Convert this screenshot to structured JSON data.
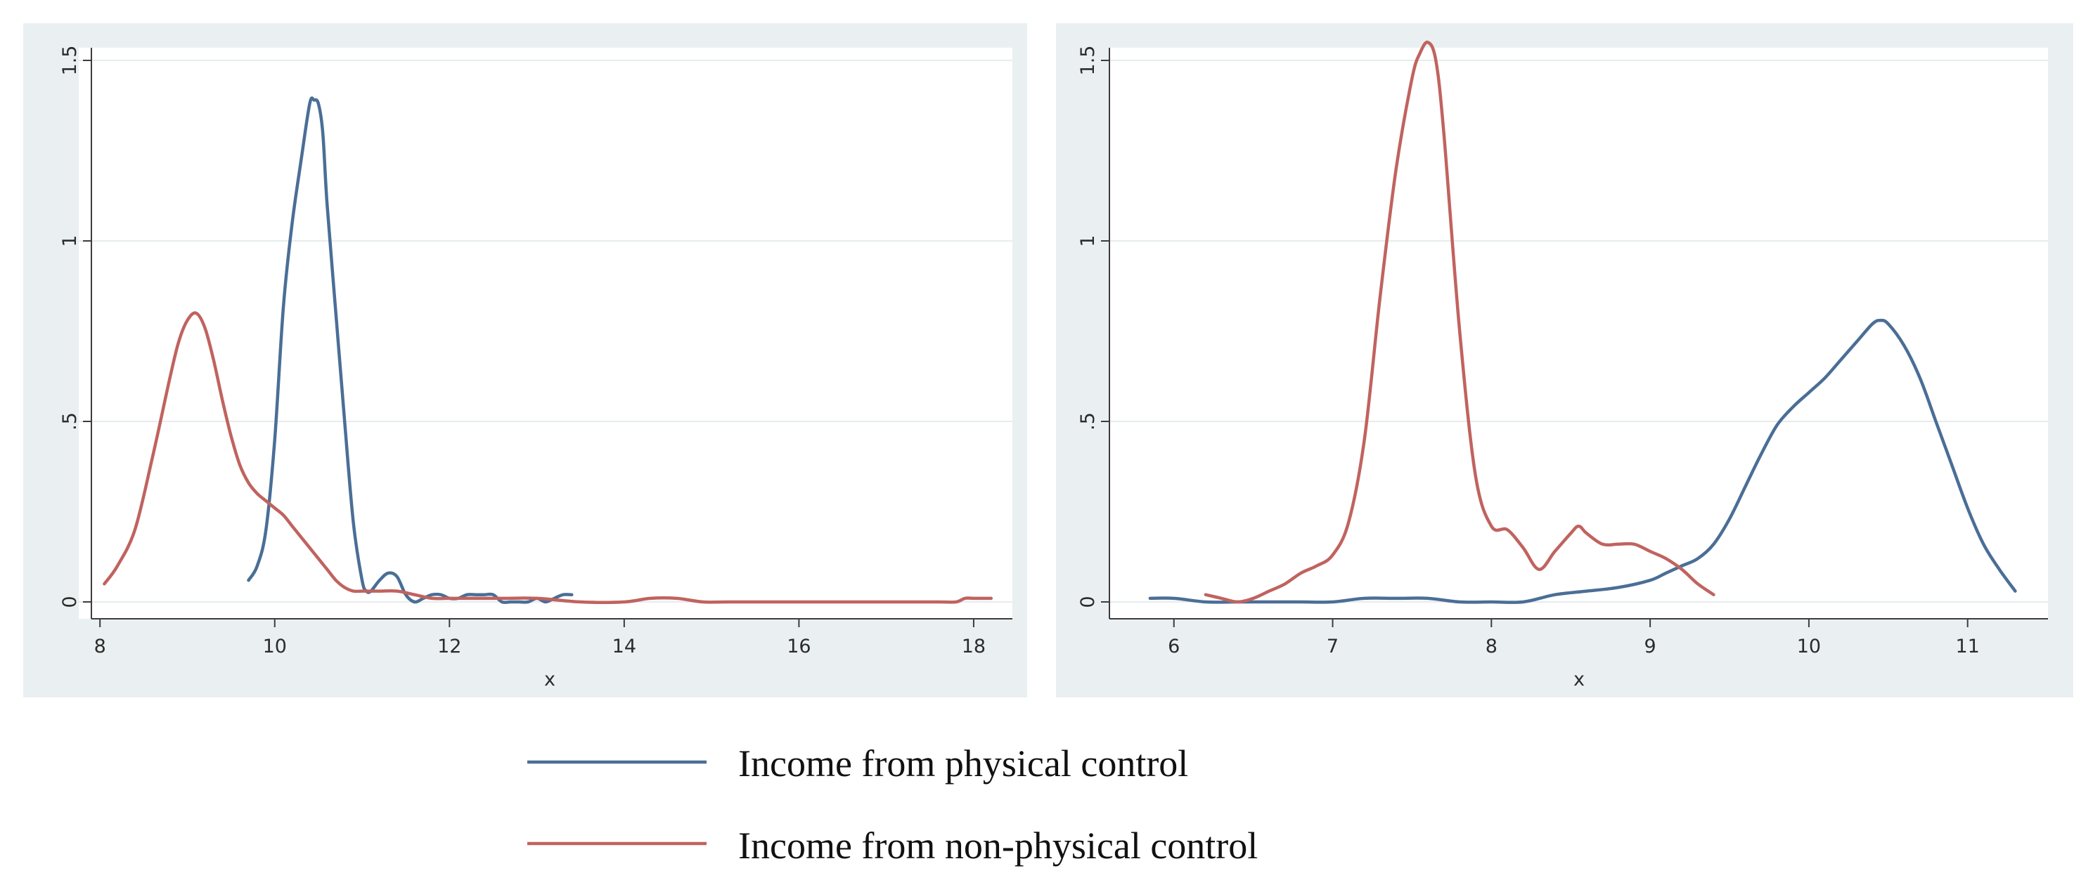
{
  "legend": [
    {
      "label": "Income from physical control",
      "color": "#4a6e96"
    },
    {
      "label": "Income from non-physical control",
      "color": "#c0635f"
    }
  ],
  "chart_data": [
    {
      "type": "line",
      "xlabel": "x",
      "ylabel": "",
      "xlim": [
        7.95,
        18.25
      ],
      "ylim": [
        0,
        1.5
      ],
      "xticks": [
        8,
        10,
        12,
        14,
        16,
        18
      ],
      "xtick_labels": [
        "8",
        "10",
        "12",
        "14",
        "16",
        "18"
      ],
      "yticks": [
        0,
        0.5,
        1,
        1.5
      ],
      "ytick_labels": [
        "0",
        ".5",
        "1",
        "1.5"
      ],
      "grid": true,
      "series": [
        {
          "name": "Income from physical control",
          "color": "#4a6e96",
          "x": [
            9.7,
            9.8,
            9.9,
            10.0,
            10.1,
            10.2,
            10.3,
            10.4,
            10.45,
            10.5,
            10.55,
            10.6,
            10.7,
            10.8,
            10.9,
            11.0,
            11.05,
            11.1,
            11.2,
            11.3,
            11.4,
            11.5,
            11.6,
            11.7,
            11.8,
            11.9,
            12.0,
            12.1,
            12.2,
            12.3,
            12.4,
            12.5,
            12.6,
            12.7,
            12.8,
            12.9,
            13.0,
            13.1,
            13.2,
            13.3,
            13.4
          ],
          "y": [
            0.06,
            0.1,
            0.2,
            0.45,
            0.82,
            1.05,
            1.22,
            1.38,
            1.39,
            1.38,
            1.3,
            1.1,
            0.8,
            0.5,
            0.22,
            0.06,
            0.03,
            0.03,
            0.06,
            0.08,
            0.07,
            0.02,
            0.0,
            0.01,
            0.02,
            0.02,
            0.01,
            0.01,
            0.02,
            0.02,
            0.02,
            0.02,
            0.0,
            0.0,
            0.0,
            0.0,
            0.01,
            0.0,
            0.01,
            0.02,
            0.02
          ]
        },
        {
          "name": "Income from non-physical control",
          "color": "#c0635f",
          "x": [
            8.05,
            8.2,
            8.4,
            8.6,
            8.8,
            8.9,
            9.0,
            9.1,
            9.2,
            9.3,
            9.4,
            9.5,
            9.6,
            9.7,
            9.8,
            9.9,
            10.0,
            10.1,
            10.2,
            10.3,
            10.4,
            10.5,
            10.6,
            10.7,
            10.8,
            10.9,
            11.0,
            11.2,
            11.4,
            11.6,
            11.8,
            12.0,
            12.3,
            12.6,
            13.0,
            13.5,
            14.0,
            14.3,
            14.6,
            14.9,
            15.2,
            16.0,
            17.0,
            17.6,
            17.8,
            17.9,
            18.0,
            18.2
          ],
          "y": [
            0.05,
            0.1,
            0.2,
            0.4,
            0.62,
            0.72,
            0.78,
            0.8,
            0.76,
            0.67,
            0.56,
            0.46,
            0.38,
            0.33,
            0.3,
            0.28,
            0.26,
            0.24,
            0.21,
            0.18,
            0.15,
            0.12,
            0.09,
            0.06,
            0.04,
            0.03,
            0.03,
            0.03,
            0.03,
            0.02,
            0.01,
            0.01,
            0.01,
            0.01,
            0.01,
            0.0,
            0.0,
            0.01,
            0.01,
            0.0,
            0.0,
            0.0,
            0.0,
            0.0,
            0.0,
            0.01,
            0.01,
            0.01
          ]
        }
      ]
    },
    {
      "type": "line",
      "xlabel": "x",
      "ylabel": "",
      "xlim": [
        5.7,
        11.4
      ],
      "ylim": [
        0,
        1.5
      ],
      "xticks": [
        6,
        7,
        8,
        9,
        10,
        11
      ],
      "xtick_labels": [
        "6",
        "7",
        "8",
        "9",
        "10",
        "11"
      ],
      "yticks": [
        0,
        0.5,
        1,
        1.5
      ],
      "ytick_labels": [
        "0",
        ".5",
        "1",
        "1.5"
      ],
      "grid": true,
      "series": [
        {
          "name": "Income from physical control",
          "color": "#4a6e96",
          "x": [
            5.85,
            6.0,
            6.2,
            6.4,
            6.6,
            6.8,
            7.0,
            7.2,
            7.4,
            7.6,
            7.8,
            8.0,
            8.2,
            8.4,
            8.6,
            8.8,
            9.0,
            9.1,
            9.2,
            9.3,
            9.4,
            9.5,
            9.6,
            9.7,
            9.8,
            9.9,
            10.0,
            10.1,
            10.2,
            10.3,
            10.4,
            10.45,
            10.5,
            10.6,
            10.7,
            10.8,
            10.9,
            11.0,
            11.1,
            11.2,
            11.3
          ],
          "y": [
            0.01,
            0.01,
            0.0,
            0.0,
            0.0,
            0.0,
            0.0,
            0.01,
            0.01,
            0.01,
            0.0,
            0.0,
            0.0,
            0.02,
            0.03,
            0.04,
            0.06,
            0.08,
            0.1,
            0.12,
            0.16,
            0.23,
            0.32,
            0.41,
            0.49,
            0.54,
            0.58,
            0.62,
            0.67,
            0.72,
            0.77,
            0.78,
            0.77,
            0.71,
            0.62,
            0.5,
            0.38,
            0.26,
            0.16,
            0.09,
            0.03
          ]
        },
        {
          "name": "Income from non-physical control",
          "color": "#c0635f",
          "x": [
            6.2,
            6.3,
            6.4,
            6.5,
            6.6,
            6.7,
            6.8,
            6.9,
            7.0,
            7.1,
            7.2,
            7.3,
            7.4,
            7.5,
            7.55,
            7.6,
            7.65,
            7.7,
            7.8,
            7.9,
            8.0,
            8.1,
            8.2,
            8.3,
            8.4,
            8.5,
            8.55,
            8.6,
            8.7,
            8.8,
            8.9,
            9.0,
            9.1,
            9.2,
            9.3,
            9.4
          ],
          "y": [
            0.02,
            0.01,
            0.0,
            0.01,
            0.03,
            0.05,
            0.08,
            0.1,
            0.13,
            0.22,
            0.45,
            0.85,
            1.2,
            1.45,
            1.52,
            1.55,
            1.5,
            1.3,
            0.75,
            0.35,
            0.21,
            0.2,
            0.15,
            0.09,
            0.14,
            0.19,
            0.21,
            0.19,
            0.16,
            0.16,
            0.16,
            0.14,
            0.12,
            0.09,
            0.05,
            0.02
          ]
        }
      ]
    }
  ]
}
